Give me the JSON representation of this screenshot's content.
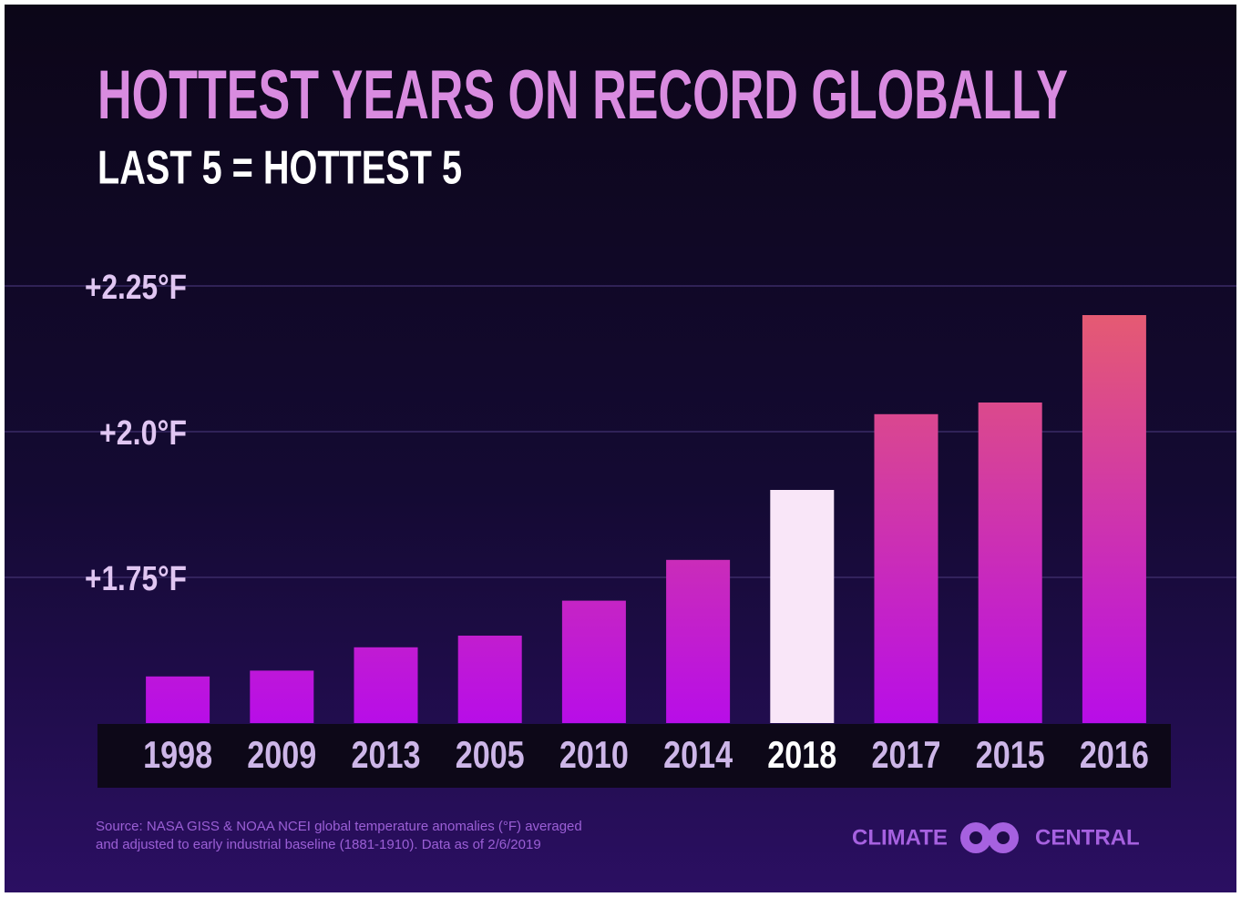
{
  "chart_data": {
    "type": "bar",
    "title": "HOTTEST YEARS ON RECORD GLOBALLY",
    "subtitle": "LAST 5 = HOTTEST 5",
    "categories": [
      "1998",
      "2009",
      "2013",
      "2005",
      "2010",
      "2014",
      "2018",
      "2017",
      "2015",
      "2016"
    ],
    "values": [
      1.58,
      1.59,
      1.63,
      1.65,
      1.71,
      1.78,
      1.9,
      2.03,
      2.05,
      2.2
    ],
    "gradient": [
      "#b80de8",
      "#e8606a"
    ],
    "highlight_index": 6,
    "highlight_color": "#f9e6f8",
    "ylim": [
      1.5,
      2.25
    ],
    "yticks": [
      {
        "value": 1.75,
        "label": "+1.75°F"
      },
      {
        "value": 2.0,
        "label": "+2.0°F"
      },
      {
        "value": 2.25,
        "label": "+2.25°F"
      }
    ],
    "grid": true,
    "source": [
      "Source: NASA GISS & NOAA NCEI global temperature anomalies (°F) averaged",
      "and adjusted to early industrial baseline (1881-1910). Data as of 2/6/2019"
    ],
    "logo": [
      "CLIMATE",
      "CENTRAL"
    ]
  }
}
